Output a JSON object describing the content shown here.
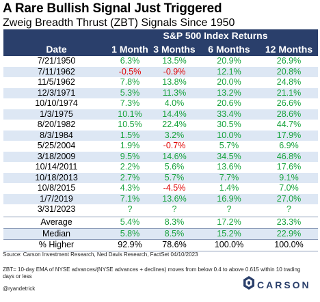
{
  "title": "A Rare Bullish Signal Just Triggered",
  "subtitle": "Zweig Breadth Thrust (ZBT) Signals Since 1950",
  "group_header": "S&P 500 Index Returns",
  "columns": [
    "Date",
    "1 Month",
    "3 Months",
    "6 Months",
    "12 Months"
  ],
  "rows": [
    [
      "7/21/1950",
      "6.3%",
      "13.5%",
      "20.9%",
      "26.9%"
    ],
    [
      "7/11/1962",
      "-0.5%",
      "-0.9%",
      "12.1%",
      "20.8%"
    ],
    [
      "11/5/1962",
      "7.8%",
      "13.8%",
      "20.0%",
      "24.8%"
    ],
    [
      "12/3/1971",
      "5.3%",
      "11.3%",
      "13.2%",
      "21.1%"
    ],
    [
      "10/10/1974",
      "7.3%",
      "4.0%",
      "20.6%",
      "26.6%"
    ],
    [
      "1/3/1975",
      "10.1%",
      "14.4%",
      "33.4%",
      "28.6%"
    ],
    [
      "8/20/1982",
      "10.5%",
      "22.4%",
      "30.5%",
      "44.7%"
    ],
    [
      "8/3/1984",
      "1.5%",
      "3.2%",
      "10.0%",
      "17.9%"
    ],
    [
      "5/25/2004",
      "1.9%",
      "-0.7%",
      "5.7%",
      "6.9%"
    ],
    [
      "3/18/2009",
      "9.5%",
      "14.6%",
      "34.5%",
      "46.8%"
    ],
    [
      "10/14/2011",
      "2.2%",
      "5.6%",
      "13.6%",
      "17.6%"
    ],
    [
      "10/18/2013",
      "2.7%",
      "5.7%",
      "7.7%",
      "9.1%"
    ],
    [
      "10/8/2015",
      "4.3%",
      "-4.5%",
      "1.4%",
      "7.0%"
    ],
    [
      "1/7/2019",
      "7.1%",
      "13.6%",
      "16.9%",
      "27.0%"
    ],
    [
      "3/31/2023",
      "?",
      "?",
      "?",
      "?"
    ]
  ],
  "summary": [
    [
      "Average",
      "5.4%",
      "8.3%",
      "17.2%",
      "23.3%"
    ],
    [
      "Median",
      "5.8%",
      "8.5%",
      "15.2%",
      "22.9%"
    ],
    [
      "% Higher",
      "92.9%",
      "78.6%",
      "100.0%",
      "100.0%"
    ]
  ],
  "source": "Source: Carson Investment Research, Ned Davis Research, FactSet 04/10/2023",
  "definition": "ZBT= 10-day EMA of NYSE advances/(NYSE advances + declines) moves from below 0.4 to above 0.615 within 10 trading days or less",
  "handle": "@ryandetrick",
  "logo_text": "CARSON",
  "colors": {
    "header_bg": "#2a3f6b",
    "row_alt": "#dde7f4",
    "positive": "#18a33d",
    "negative": "#e00000"
  }
}
